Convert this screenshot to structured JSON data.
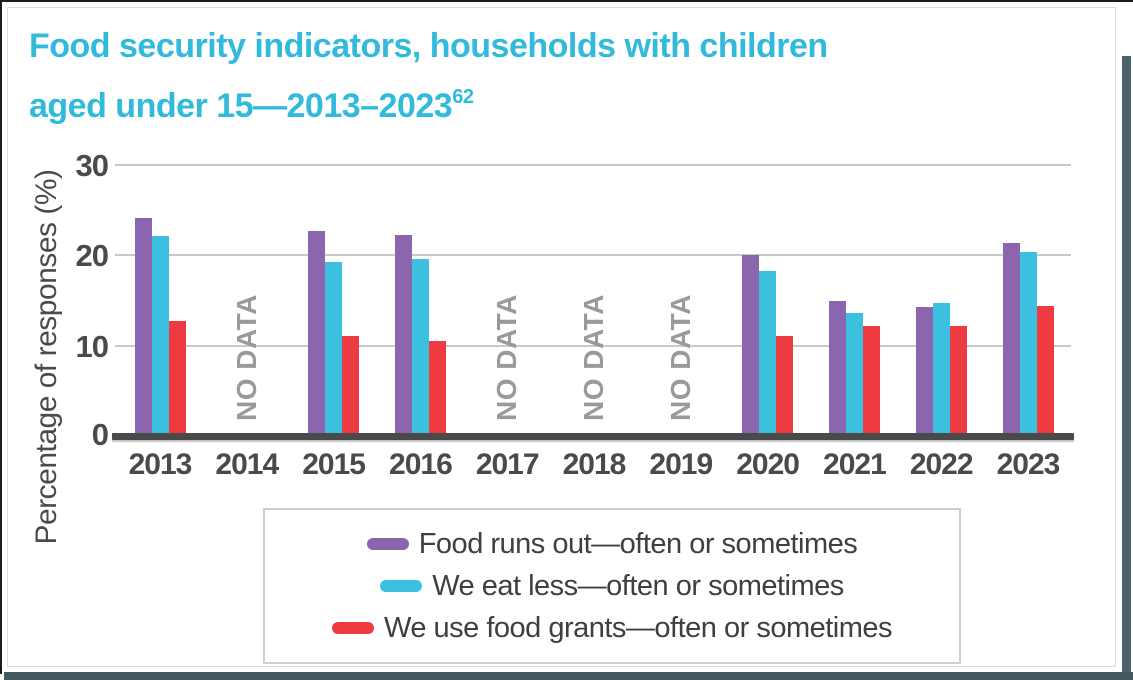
{
  "page": {
    "title_line1": "Food security indicators, households with children",
    "title_line2": "aged under 15—2013–2023",
    "title_superscript": "62"
  },
  "chart_data": {
    "type": "bar",
    "title": "Food security indicators, households with children aged under 15—2013–2023",
    "xlabel": "",
    "ylabel": "Percentage of responses (%)",
    "ylim": [
      0,
      30
    ],
    "yticks": [
      0,
      10,
      20,
      30
    ],
    "grid": true,
    "legend_position": "bottom-center-boxed",
    "categories": [
      "2013",
      "2014",
      "2015",
      "2016",
      "2017",
      "2018",
      "2019",
      "2020",
      "2021",
      "2022",
      "2023"
    ],
    "no_data_years": [
      "2014",
      "2017",
      "2018",
      "2019"
    ],
    "no_data_label": "NO DATA",
    "series": [
      {
        "name": "Food runs out—often or sometimes",
        "slug": "food-runs-out",
        "color": "#8B65AD",
        "values": [
          24.1,
          null,
          22.6,
          22.2,
          null,
          null,
          null,
          20.0,
          14.9,
          14.3,
          21.3
        ]
      },
      {
        "name": "We eat less—often or sometimes",
        "slug": "we-eat-less",
        "color": "#3CC0E0",
        "values": [
          22.1,
          null,
          19.2,
          19.6,
          null,
          null,
          null,
          18.2,
          13.6,
          14.7,
          20.3
        ]
      },
      {
        "name": "We use food grants—often or sometimes",
        "slug": "we-use-food-grants",
        "color": "#EE3A41",
        "values": [
          12.7,
          null,
          11.0,
          10.5,
          null,
          null,
          null,
          11.1,
          12.2,
          12.2,
          14.4
        ]
      }
    ]
  },
  "colors": {
    "title": "#32badd",
    "axis_text": "#4a4a4a",
    "gridline": "#c9c9c9",
    "no_data_text": "#9a9a9a",
    "legend_text": "#3f3f3f",
    "card_border": "#dcdcdc",
    "page_edge_dark": "#1c1c1c",
    "page_edge_slate": "#4b6269"
  }
}
